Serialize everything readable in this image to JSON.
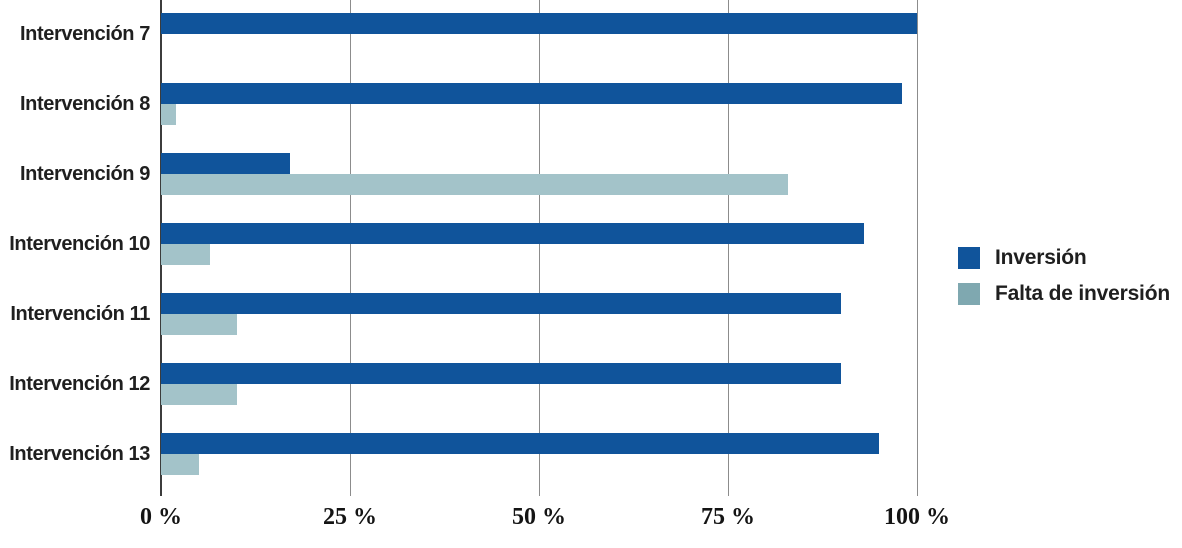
{
  "chart_data": {
    "type": "bar",
    "orientation": "horizontal",
    "title": "",
    "categories": [
      "Intervención 7",
      "Intervención 8",
      "Intervención 9",
      "Intervención 10",
      "Intervención 11",
      "Intervención 12",
      "Intervención 13"
    ],
    "series": [
      {
        "name": "Inversión",
        "color": "#10549B",
        "legend_color": "#10549B",
        "values": [
          100,
          98,
          17,
          93,
          90,
          90,
          95
        ]
      },
      {
        "name": "Falta de inversión",
        "color": "#A3C3C9",
        "legend_color": "#7FA8B0",
        "values": [
          0,
          2,
          83,
          6.5,
          10,
          10,
          5
        ]
      }
    ],
    "xlim": [
      0,
      100
    ],
    "x_ticks": [
      {
        "value": 0,
        "label": "0 %"
      },
      {
        "value": 25,
        "label": "25 %"
      },
      {
        "value": 50,
        "label": "50 %"
      },
      {
        "value": 75,
        "label": "75 %"
      },
      {
        "value": 100,
        "label": "100 %"
      }
    ],
    "grid": "vertical-gridlines-only",
    "legend_position": "right-center"
  },
  "colors": {
    "background": "#FFFFFF",
    "gridline": "#8C8C8C",
    "axis_line": "#3C3C3C",
    "category_label_text": "#1F1F1F",
    "tick_label_text": "#141414",
    "legend_text": "#1F1F1F"
  }
}
